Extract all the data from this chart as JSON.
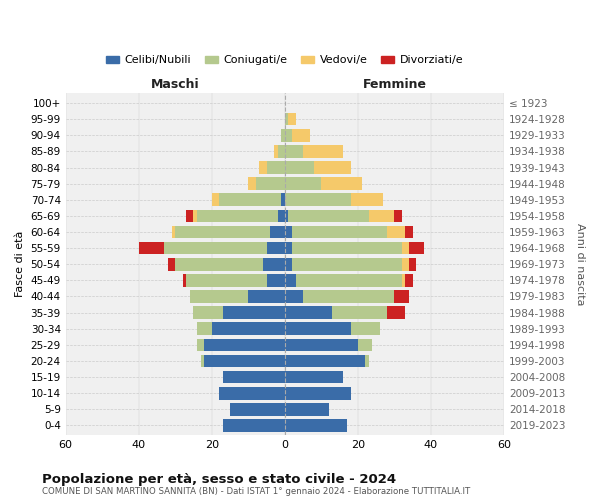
{
  "age_groups": [
    "0-4",
    "5-9",
    "10-14",
    "15-19",
    "20-24",
    "25-29",
    "30-34",
    "35-39",
    "40-44",
    "45-49",
    "50-54",
    "55-59",
    "60-64",
    "65-69",
    "70-74",
    "75-79",
    "80-84",
    "85-89",
    "90-94",
    "95-99",
    "100+"
  ],
  "birth_years": [
    "2019-2023",
    "2014-2018",
    "2009-2013",
    "2004-2008",
    "1999-2003",
    "1994-1998",
    "1989-1993",
    "1984-1988",
    "1979-1983",
    "1974-1978",
    "1969-1973",
    "1964-1968",
    "1959-1963",
    "1954-1958",
    "1949-1953",
    "1944-1948",
    "1939-1943",
    "1934-1938",
    "1929-1933",
    "1924-1928",
    "≤ 1923"
  ],
  "male": {
    "celibi": [
      17,
      15,
      18,
      17,
      22,
      22,
      20,
      17,
      10,
      5,
      6,
      5,
      4,
      2,
      1,
      0,
      0,
      0,
      0,
      0,
      0
    ],
    "coniugati": [
      0,
      0,
      0,
      0,
      1,
      2,
      4,
      8,
      16,
      22,
      24,
      28,
      26,
      22,
      17,
      8,
      5,
      2,
      1,
      0,
      0
    ],
    "vedovi": [
      0,
      0,
      0,
      0,
      0,
      0,
      0,
      0,
      0,
      0,
      0,
      0,
      1,
      1,
      2,
      2,
      2,
      1,
      0,
      0,
      0
    ],
    "divorziati": [
      0,
      0,
      0,
      0,
      0,
      0,
      0,
      0,
      0,
      1,
      2,
      7,
      0,
      2,
      0,
      0,
      0,
      0,
      0,
      0,
      0
    ]
  },
  "female": {
    "nubili": [
      17,
      12,
      18,
      16,
      22,
      20,
      18,
      13,
      5,
      3,
      2,
      2,
      2,
      1,
      0,
      0,
      0,
      0,
      0,
      0,
      0
    ],
    "coniugate": [
      0,
      0,
      0,
      0,
      1,
      4,
      8,
      15,
      25,
      29,
      30,
      30,
      26,
      22,
      18,
      10,
      8,
      5,
      2,
      1,
      0
    ],
    "vedove": [
      0,
      0,
      0,
      0,
      0,
      0,
      0,
      0,
      0,
      1,
      2,
      2,
      5,
      7,
      9,
      11,
      10,
      11,
      5,
      2,
      0
    ],
    "divorziate": [
      0,
      0,
      0,
      0,
      0,
      0,
      0,
      5,
      4,
      2,
      2,
      4,
      2,
      2,
      0,
      0,
      0,
      0,
      0,
      0,
      0
    ]
  },
  "colors": {
    "celibi": "#3a6ca8",
    "coniugati": "#b5c98e",
    "vedovi": "#f5c96a",
    "divorziati": "#cc2222"
  },
  "title1": "Popolazione per età, sesso e stato civile - 2024",
  "title2": "COMUNE DI SAN MARTINO SANNITA (BN) - Dati ISTAT 1° gennaio 2024 - Elaborazione TUTTITALIA.IT",
  "xlabel_left": "Maschi",
  "xlabel_right": "Femmine",
  "ylabel": "Fasce di età",
  "ylabel_right": "Anni di nascita",
  "legend_labels": [
    "Celibi/Nubili",
    "Coniugati/e",
    "Vedovi/e",
    "Divorziati/e"
  ],
  "xlim": 60,
  "bg_color": "#ffffff",
  "grid_color": "#cccccc"
}
